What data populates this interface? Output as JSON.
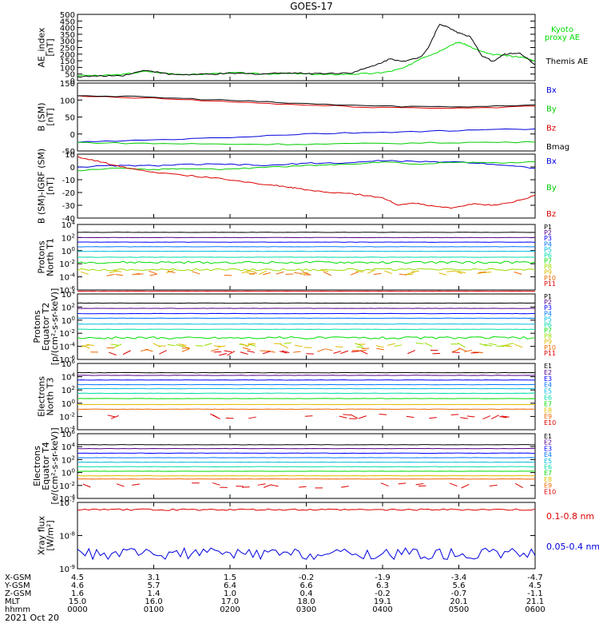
{
  "figure": {
    "title": "GOES-17",
    "date_label": "2021 Oct 20"
  },
  "chart_data": [
    {
      "id": "ae",
      "type": "line",
      "ylabel": "AE_index\n[nT]",
      "ylim": [
        0,
        500
      ],
      "scale": "linear",
      "ticks": [
        "0",
        "50",
        "100",
        "150",
        "200",
        "250",
        "300",
        "350",
        "400",
        "450",
        "500"
      ],
      "x_hours": [
        0,
        6
      ],
      "series": [
        {
          "name": "Kyoto\nproxy AE",
          "color": "#00dd00",
          "x": [
            0,
            0.3,
            0.6,
            0.9,
            1.2,
            1.5,
            1.8,
            2.1,
            2.4,
            2.7,
            3.0,
            3.3,
            3.6,
            3.9,
            4.1,
            4.3,
            4.5,
            4.7,
            4.9,
            5.0,
            5.1,
            5.2,
            5.4,
            5.6,
            5.8,
            6.0
          ],
          "y": [
            40,
            38,
            48,
            70,
            55,
            45,
            55,
            60,
            50,
            55,
            50,
            45,
            50,
            55,
            70,
            100,
            170,
            210,
            270,
            290,
            270,
            240,
            200,
            190,
            180,
            150
          ]
        },
        {
          "name": "Themis AE",
          "color": "#000000",
          "x": [
            0,
            0.3,
            0.6,
            0.9,
            1.2,
            1.5,
            1.8,
            2.1,
            2.4,
            2.7,
            3.0,
            3.3,
            3.6,
            3.9,
            4.1,
            4.3,
            4.5,
            4.6,
            4.75,
            4.9,
            5.0,
            5.15,
            5.3,
            5.45,
            5.6,
            5.8,
            6.0
          ],
          "y": [
            30,
            35,
            40,
            80,
            48,
            45,
            50,
            55,
            50,
            60,
            55,
            55,
            60,
            115,
            165,
            145,
            180,
            250,
            430,
            390,
            360,
            330,
            190,
            145,
            200,
            210,
            120
          ]
        }
      ]
    },
    {
      "id": "bsm",
      "type": "line",
      "ylabel": "B (SM)\n[nT]",
      "ylim": [
        -50,
        150
      ],
      "scale": "linear",
      "ticks": [
        "-50",
        "0",
        "50",
        "100",
        "150"
      ],
      "series": [
        {
          "name": "Bx",
          "color": "#0000dd",
          "x": [
            0,
            1,
            2,
            3,
            4,
            5,
            6
          ],
          "y": [
            -24,
            -18,
            -10,
            0,
            5,
            10,
            15
          ]
        },
        {
          "name": "By",
          "color": "#00cc00",
          "x": [
            0,
            1,
            2,
            3,
            4,
            5,
            6
          ],
          "y": [
            -25,
            -28,
            -30,
            -30,
            -28,
            -25,
            -24
          ]
        },
        {
          "name": "Bz",
          "color": "#dd0000",
          "x": [
            0,
            1,
            2,
            3,
            4,
            5,
            6
          ],
          "y": [
            111,
            105,
            95,
            85,
            78,
            76,
            82
          ]
        },
        {
          "name": "Bmag",
          "color": "#000000",
          "x": [
            0,
            1,
            2,
            3,
            4,
            5,
            6
          ],
          "y": [
            114,
            108,
            99,
            89,
            82,
            80,
            86
          ]
        }
      ]
    },
    {
      "id": "bigrf",
      "type": "line",
      "ylabel": "B (SM)-IGRF (SM)\n[nT]",
      "ylim": [
        -40,
        10
      ],
      "scale": "linear",
      "ticks": [
        "-40",
        "-30",
        "-20",
        "-10",
        "0",
        "10"
      ],
      "series": [
        {
          "name": "Bx",
          "color": "#0000dd",
          "x": [
            0,
            0.5,
            1,
            1.5,
            2,
            2.5,
            3,
            3.5,
            4,
            4.5,
            5,
            5.5,
            6
          ],
          "y": [
            0,
            1,
            1,
            2,
            2,
            1,
            3,
            3,
            5,
            4,
            4,
            2,
            -1
          ]
        },
        {
          "name": "By",
          "color": "#00cc00",
          "x": [
            0,
            0.5,
            1,
            1.5,
            2,
            2.5,
            3,
            3.5,
            4,
            4.5,
            5,
            5.5,
            6
          ],
          "y": [
            -3,
            -1,
            -2,
            -1,
            -2,
            0,
            1,
            2,
            4,
            2,
            4,
            3,
            4
          ]
        },
        {
          "name": "Bz",
          "color": "#dd0000",
          "x": [
            0,
            0.3,
            0.6,
            1,
            1.5,
            2,
            2.5,
            2.8,
            3,
            3.3,
            3.6,
            4,
            4.2,
            4.4,
            4.6,
            4.9,
            5.2,
            5.5,
            5.8,
            6
          ],
          "y": [
            8,
            4,
            0,
            -4,
            -7,
            -10,
            -14,
            -16,
            -18,
            -20,
            -21,
            -24,
            -30,
            -28,
            -30,
            -32,
            -29,
            -30,
            -26,
            -22
          ]
        }
      ]
    },
    {
      "id": "prot_t1",
      "type": "line",
      "ylabel": "Protons\nNorth T1",
      "ylim_log10": [
        -6,
        4
      ],
      "scale": "log",
      "tick_exps": [
        -6,
        -4,
        -2,
        0,
        2,
        4
      ],
      "series": [
        {
          "name": "P1",
          "color": "#000000",
          "level": 2.8
        },
        {
          "name": "P2",
          "color": "#550088",
          "level": 2.0
        },
        {
          "name": "P3",
          "color": "#0000ff",
          "level": 1.3
        },
        {
          "name": "P4",
          "color": "#0077ff",
          "level": 0.6
        },
        {
          "name": "P5",
          "color": "#00bbdd",
          "level": -0.1
        },
        {
          "name": "P6",
          "color": "#00ddaa",
          "level": -1.0
        },
        {
          "name": "P7",
          "color": "#00dd00",
          "level": -1.8,
          "noisy": true
        },
        {
          "name": "P8",
          "color": "#99dd00",
          "level": -2.9,
          "noisy": true
        },
        {
          "name": "P9",
          "color": "#ddbb00",
          "level": -3.3,
          "sparse": true
        },
        {
          "name": "P10",
          "color": "#ee6600",
          "level": -3.5,
          "sparse": true
        },
        {
          "name": "P11",
          "color": "#dd0000",
          "level": -6.2
        }
      ]
    },
    {
      "id": "prot_t2",
      "type": "line",
      "ylabel": "Protons\nEquator T2\n[p/(cm²-s-sr-keV)]",
      "ylim_log10": [
        -6,
        4
      ],
      "scale": "log",
      "tick_exps": [
        -6,
        -4,
        -2,
        0,
        2,
        4
      ],
      "series": [
        {
          "name": "P1",
          "color": "#000000",
          "level": 2.6
        },
        {
          "name": "P2",
          "color": "#550088",
          "level": 1.8
        },
        {
          "name": "P3",
          "color": "#0000ff",
          "level": 1.0
        },
        {
          "name": "P4",
          "color": "#0077ff",
          "level": 0.3
        },
        {
          "name": "P5",
          "color": "#00bbdd",
          "level": -0.6
        },
        {
          "name": "P6",
          "color": "#00ddaa",
          "level": -1.4
        },
        {
          "name": "P7",
          "color": "#00dd00",
          "level": -2.7,
          "noisy": true
        },
        {
          "name": "P8",
          "color": "#99dd00",
          "level": -3.8,
          "sparse": true
        },
        {
          "name": "P9",
          "color": "#ddbb00",
          "level": -3.9,
          "sparse": true
        },
        {
          "name": "P10",
          "color": "#ee6600",
          "level": -4.6,
          "sparse": true
        },
        {
          "name": "P11",
          "color": "#dd0000",
          "level": -5.0,
          "sparse": true
        }
      ]
    },
    {
      "id": "elec_t3",
      "type": "line",
      "ylabel": "Electrons\nNorth T3",
      "ylim_log10": [
        -4,
        6
      ],
      "scale": "log",
      "tick_exps": [
        -4,
        -2,
        0,
        2,
        4,
        6
      ],
      "series": [
        {
          "name": "E1",
          "color": "#000000",
          "level": 4.6
        },
        {
          "name": "E2",
          "color": "#550088",
          "level": 4.2
        },
        {
          "name": "E3",
          "color": "#0000ff",
          "level": 3.5
        },
        {
          "name": "E4",
          "color": "#0077ff",
          "level": 2.8
        },
        {
          "name": "E5",
          "color": "#00bbdd",
          "level": 2.2
        },
        {
          "name": "E6",
          "color": "#00ddaa",
          "level": 1.5
        },
        {
          "name": "E7",
          "color": "#00dd00",
          "level": 0.7
        },
        {
          "name": "E8",
          "color": "#ddbb00",
          "level": -0.2
        },
        {
          "name": "E9",
          "color": "#ee6600",
          "level": -0.9
        },
        {
          "name": "E10",
          "color": "#dd0000",
          "level": -2.0,
          "sparse": true
        }
      ]
    },
    {
      "id": "elec_t4",
      "type": "line",
      "ylabel": "Electrons\nEquator T4\n[e/(cm²-s-sr-keV)]",
      "ylim_log10": [
        -4,
        6
      ],
      "scale": "log",
      "tick_exps": [
        -4,
        -2,
        0,
        2,
        4,
        6
      ],
      "series": [
        {
          "name": "E1",
          "color": "#000000",
          "level": 4.3
        },
        {
          "name": "E2",
          "color": "#550088",
          "level": 3.7
        },
        {
          "name": "E3",
          "color": "#0000ff",
          "level": 3.0
        },
        {
          "name": "E4",
          "color": "#0077ff",
          "level": 2.3
        },
        {
          "name": "E5",
          "color": "#00bbdd",
          "level": 1.6
        },
        {
          "name": "E6",
          "color": "#00ddaa",
          "level": 0.9
        },
        {
          "name": "E7",
          "color": "#00dd00",
          "level": 0.2
        },
        {
          "name": "E8",
          "color": "#ddbb00",
          "level": -0.5
        },
        {
          "name": "E9",
          "color": "#ee6600",
          "level": -1.0
        },
        {
          "name": "E10",
          "color": "#dd0000",
          "level": -2.0,
          "sparse": true
        }
      ]
    },
    {
      "id": "xray",
      "type": "line",
      "ylabel": "Xray flux\n[W/m²]",
      "ylim_log10": [
        -9,
        -7
      ],
      "scale": "log",
      "tick_exps": [
        -9,
        -8,
        -7
      ],
      "series": [
        {
          "name": "0.1-0.8 nm",
          "color": "#dd0000",
          "level": -7.22
        },
        {
          "name": "0.05-0.4 nm",
          "color": "#0000dd",
          "level": -8.55,
          "noisy": true
        }
      ]
    }
  ],
  "ephemeris": {
    "row_labels": [
      "X-GSM",
      "Y-GSM",
      "Z-GSM",
      "MLT",
      "hhmm"
    ],
    "columns": [
      [
        "4.5",
        "4.6",
        "1.6",
        "15.0",
        "0000"
      ],
      [
        "3.1",
        "5.7",
        "1.4",
        "16.0",
        "0100"
      ],
      [
        "1.5",
        "6.4",
        "1.0",
        "17.0",
        "0200"
      ],
      [
        "-0.2",
        "6.6",
        "0.4",
        "18.0",
        "0300"
      ],
      [
        "-1.9",
        "6.3",
        "-0.2",
        "19.1",
        "0400"
      ],
      [
        "-3.4",
        "5.6",
        "-0.7",
        "20.1",
        "0500"
      ],
      [
        "-4.7",
        "4.5",
        "-1.1",
        "21.1",
        "0600"
      ]
    ]
  }
}
